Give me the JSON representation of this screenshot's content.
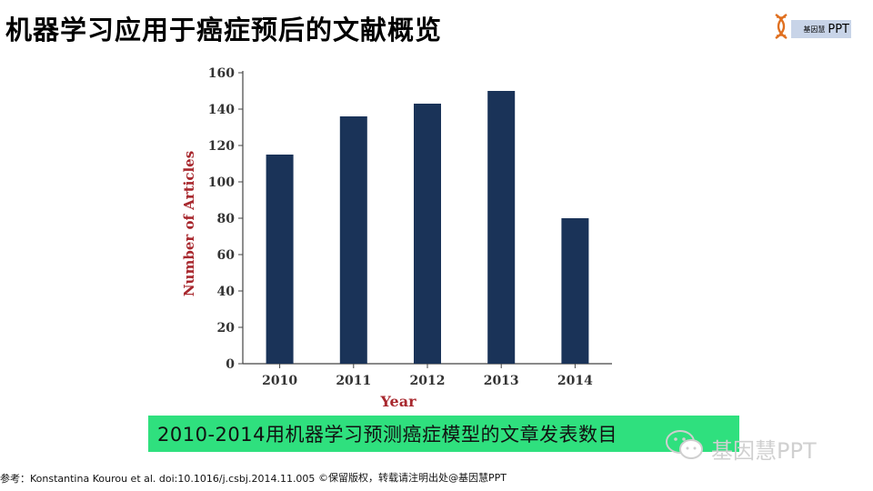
{
  "slide": {
    "title": "机器学习应用于癌症预后的文献概览",
    "caption": "2010-2014用机器学习预测癌症模型的文章发表数目",
    "reference": "参考：Konstantina Kourou et al. doi:10.1016/j.csbj.2014.11.005",
    "copyright": "©保留版权，转载请注明出处@基因慧PPT"
  },
  "logo": {
    "cn": "基因慧",
    "latin": "PPT",
    "icon": "dna-helix-icon"
  },
  "watermark": {
    "text": "基因慧PPT",
    "icon": "wechat-icon"
  },
  "colors": {
    "bar": "#1a3358",
    "axis_title": "#a8282e",
    "caption_bg": "#2fe07e"
  },
  "chart_data": {
    "type": "bar",
    "categories": [
      "2010",
      "2011",
      "2012",
      "2013",
      "2014"
    ],
    "values": [
      115,
      136,
      143,
      150,
      80
    ],
    "title": "",
    "xlabel": "Year",
    "ylabel": "Number of Articles",
    "ylim": [
      0,
      160
    ],
    "yticks": [
      0,
      20,
      40,
      60,
      80,
      100,
      120,
      140,
      160
    ],
    "grid": false,
    "legend": "none"
  }
}
